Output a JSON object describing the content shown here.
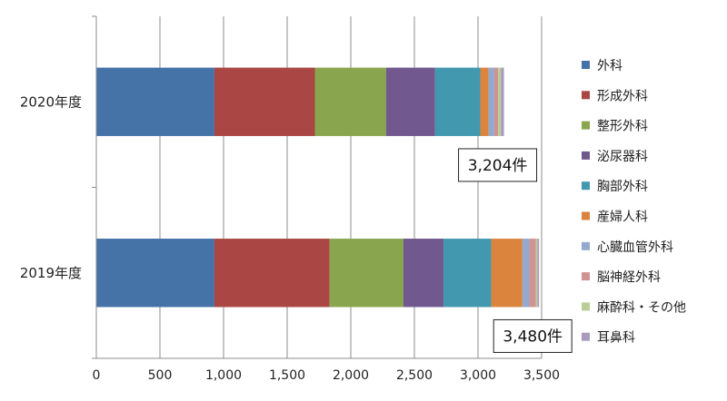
{
  "chart_data": {
    "type": "bar",
    "orientation": "horizontal",
    "stacked": true,
    "title": "",
    "xlabel": "",
    "ylabel": "",
    "xlim": [
      0,
      3500
    ],
    "x_ticks": [
      "0",
      "500",
      "1,000",
      "1,500",
      "2,000",
      "2,500",
      "3,000",
      "3,500"
    ],
    "grid": "vertical",
    "legend_position": "right",
    "categories": [
      "2020年度",
      "2019年度"
    ],
    "series": [
      {
        "name": "外科",
        "color": "#4572A7",
        "values": [
          928,
          928
        ]
      },
      {
        "name": "形成外科",
        "color": "#AA4643",
        "values": [
          790,
          906
        ]
      },
      {
        "name": "整形外科",
        "color": "#89A54E",
        "values": [
          560,
          580
        ]
      },
      {
        "name": "泌尿器科",
        "color": "#71588F",
        "values": [
          385,
          315
        ]
      },
      {
        "name": "胸部外科",
        "color": "#4198AF",
        "values": [
          355,
          375
        ]
      },
      {
        "name": "産婦人科",
        "color": "#DB843D",
        "values": [
          65,
          245
        ]
      },
      {
        "name": "心臓血管外科",
        "color": "#93A9CF",
        "values": [
          45,
          55
        ]
      },
      {
        "name": "脳神経外科",
        "color": "#D19392",
        "values": [
          30,
          50
        ]
      },
      {
        "name": "麻酔科・その他",
        "color": "#B9CD96",
        "values": [
          22,
          13
        ]
      },
      {
        "name": "耳鼻科",
        "color": "#A99BBD",
        "values": [
          24,
          13
        ]
      }
    ],
    "totals": [
      "3,204件",
      "3,480件"
    ]
  }
}
